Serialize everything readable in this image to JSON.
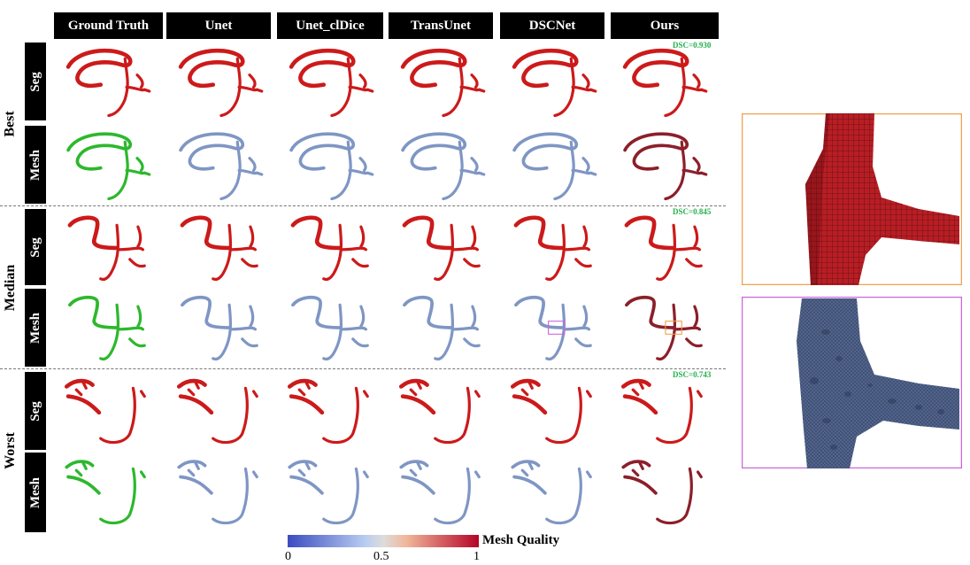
{
  "columns": [
    "Ground Truth",
    "Unet",
    "Unet_clDice",
    "TransUnet",
    "DSCNet",
    "Ours"
  ],
  "groups": [
    {
      "label": "Best",
      "dsc": "DSC=0.930",
      "rows": [
        "Seg",
        "Mesh"
      ]
    },
    {
      "label": "Median",
      "dsc": "DSC=0.845",
      "rows": [
        "Seg",
        "Mesh"
      ]
    },
    {
      "label": "Worst",
      "dsc": "DSC=0.743",
      "rows": [
        "Seg",
        "Mesh"
      ]
    }
  ],
  "legend": {
    "title": "Mesh Quality",
    "ticks": [
      "0",
      "0.5",
      "1"
    ]
  },
  "colors": {
    "seg": "#cc1a1a",
    "gt_mesh": "#2db82d",
    "baseline_mesh": "#7f96c4",
    "ours_mesh": "#8c1f2a",
    "zoom_orange": "#f0a050",
    "zoom_purple": "#cc66dd"
  }
}
